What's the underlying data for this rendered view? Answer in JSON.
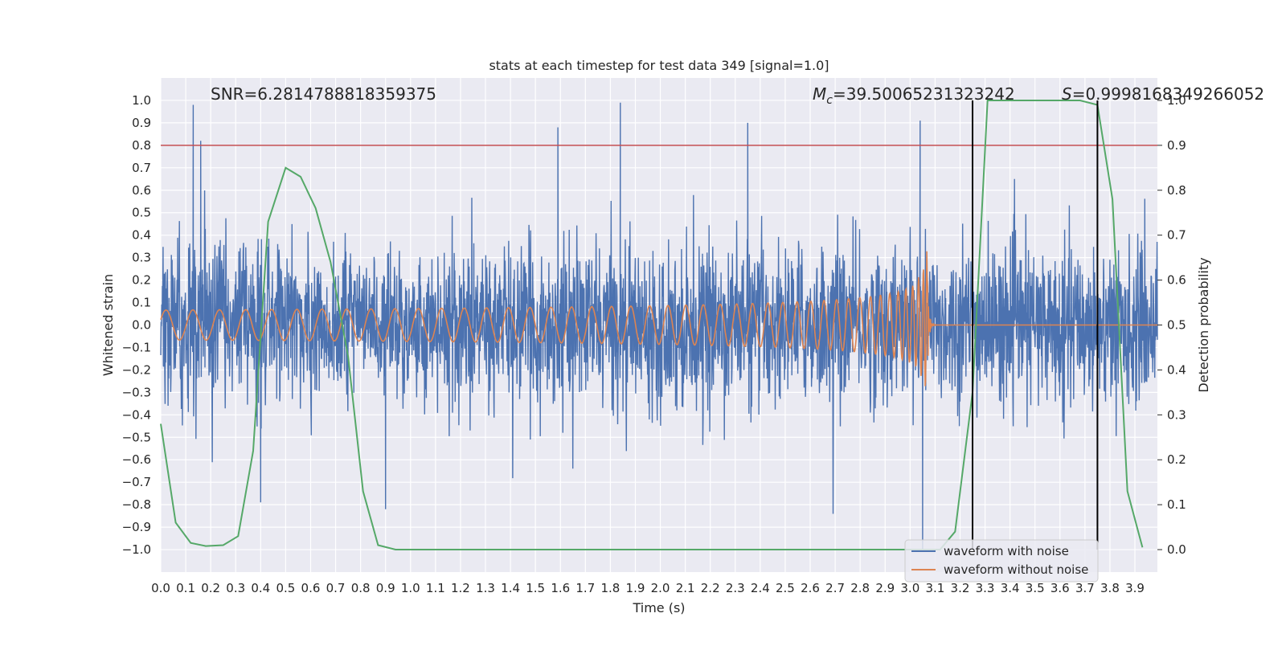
{
  "chart_data": {
    "type": "line",
    "title": "stats at each timestep for test data 349 [signal=1.0]",
    "xlabel": "Time (s)",
    "ylabel": "Whitened strain",
    "y2label": "Detection probability",
    "xlim": [
      0.0,
      3.99
    ],
    "ylim": [
      -1.1,
      1.1
    ],
    "y2lim": [
      -0.05,
      1.05
    ],
    "xticks": [
      "0.0",
      "0.1",
      "0.2",
      "0.3",
      "0.4",
      "0.5",
      "0.6",
      "0.7",
      "0.8",
      "0.9",
      "1.0",
      "1.1",
      "1.2",
      "1.3",
      "1.4",
      "1.5",
      "1.6",
      "1.7",
      "1.8",
      "1.9",
      "2.0",
      "2.1",
      "2.2",
      "2.3",
      "2.4",
      "2.5",
      "2.6",
      "2.7",
      "2.8",
      "2.9",
      "3.0",
      "3.1",
      "3.2",
      "3.3",
      "3.4",
      "3.5",
      "3.6",
      "3.7",
      "3.8",
      "3.9"
    ],
    "yticks": [
      "1.0",
      "0.9",
      "0.8",
      "0.7",
      "0.6",
      "0.5",
      "0.4",
      "0.3",
      "0.2",
      "0.1",
      "0.0",
      "−0.1",
      "−0.2",
      "−0.3",
      "−0.4",
      "−0.5",
      "−0.6",
      "−0.7",
      "−0.8",
      "−0.9",
      "−1.0"
    ],
    "y2ticks": [
      "1.0",
      "0.9",
      "0.8",
      "0.7",
      "0.6",
      "0.5",
      "0.4",
      "0.3",
      "0.2",
      "0.1",
      "0.0"
    ],
    "grid": true,
    "legend_position": "lower-right",
    "annotations": {
      "snr": "SNR=6.2814788818359375",
      "mc_symbol": "M",
      "mc_subscript": "c",
      "mc_value": "=39.50065231323242",
      "s_symbol": "S",
      "s_value": "=0.9998168349266052"
    },
    "threshold": {
      "value": 0.9,
      "axis": "y2",
      "color": "#c44e52"
    },
    "vertical_lines": [
      3.25,
      3.75
    ],
    "series": [
      {
        "name": "waveform with noise",
        "axis": "y",
        "color": "#4c72b0",
        "note": "dense whitened noise, approx amplitude envelope ±0.35 with spikes to ±1.0",
        "spikes": [
          [
            0.13,
            0.98
          ],
          [
            0.16,
            0.82
          ],
          [
            1.84,
            0.99
          ],
          [
            0.4,
            -0.79
          ],
          [
            0.9,
            -0.82
          ],
          [
            3.05,
            -1.0
          ],
          [
            3.04,
            0.91
          ],
          [
            2.35,
            0.9
          ],
          [
            1.59,
            0.88
          ]
        ]
      },
      {
        "name": "waveform without noise",
        "axis": "y",
        "color": "#dd8452",
        "note": "chirp with increasing frequency/amplitude ending at merger near t=3.07 s",
        "merger_time": 3.07,
        "peak_amplitude": 0.38
      },
      {
        "name": "detection probability",
        "axis": "y2",
        "color": "#55a868",
        "x": [
          0.0,
          0.06,
          0.12,
          0.18,
          0.25,
          0.31,
          0.37,
          0.43,
          0.5,
          0.56,
          0.62,
          0.68,
          0.75,
          0.81,
          0.87,
          0.94,
          1.0,
          3.0,
          3.12,
          3.18,
          3.25,
          3.31,
          3.37,
          3.43,
          3.5,
          3.56,
          3.62,
          3.68,
          3.75,
          3.81,
          3.87,
          3.93
        ],
        "values": [
          0.28,
          0.06,
          0.015,
          0.008,
          0.01,
          0.03,
          0.22,
          0.73,
          0.85,
          0.83,
          0.76,
          0.64,
          0.43,
          0.13,
          0.01,
          0.0,
          0.0,
          0.0,
          0.0,
          0.04,
          0.35,
          1.0,
          1.0,
          1.0,
          1.0,
          1.0,
          1.0,
          1.0,
          0.99,
          0.78,
          0.13,
          0.005
        ]
      }
    ]
  }
}
